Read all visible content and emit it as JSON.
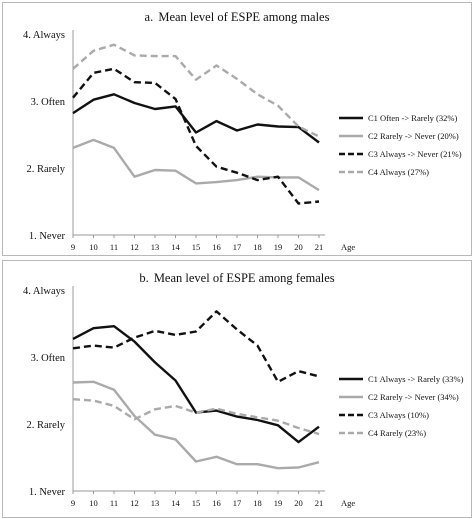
{
  "chart_data": [
    {
      "type": "line",
      "title_prefix": "a.",
      "title": "Mean level of ESPE among males",
      "x": [
        9,
        10,
        11,
        12,
        13,
        14,
        15,
        16,
        17,
        18,
        19,
        20,
        21
      ],
      "xlabel": "Age",
      "ylim": [
        1,
        4
      ],
      "yticks": [
        {
          "value": 4,
          "label": "4. Always"
        },
        {
          "value": 3,
          "label": "3. Often"
        },
        {
          "value": 2,
          "label": "2. Rarely"
        },
        {
          "value": 1,
          "label": "1. Never"
        }
      ],
      "legend_position": "right",
      "series": [
        {
          "name": "C1 Often -> Rarely (32%)",
          "color": "#111111",
          "dash": "solid",
          "values": [
            2.82,
            3.02,
            3.1,
            2.97,
            2.88,
            2.92,
            2.53,
            2.7,
            2.56,
            2.65,
            2.62,
            2.61,
            2.38
          ]
        },
        {
          "name": "C2 Rarely -> Never (20%)",
          "color": "#aaaaaa",
          "dash": "solid",
          "values": [
            2.3,
            2.42,
            2.3,
            1.87,
            1.97,
            1.96,
            1.77,
            1.79,
            1.82,
            1.87,
            1.86,
            1.86,
            1.67
          ]
        },
        {
          "name": "C3 Always -> Never (21%)",
          "color": "#111111",
          "dash": "dashed",
          "values": [
            3.05,
            3.42,
            3.48,
            3.28,
            3.27,
            3.03,
            2.33,
            2.02,
            1.93,
            1.82,
            1.87,
            1.47,
            1.5
          ]
        },
        {
          "name": "C4 Always (27%)",
          "color": "#aaaaaa",
          "dash": "dashed",
          "values": [
            3.48,
            3.75,
            3.84,
            3.68,
            3.67,
            3.67,
            3.32,
            3.53,
            3.33,
            3.1,
            2.93,
            2.62,
            2.47
          ]
        }
      ]
    },
    {
      "type": "line",
      "title_prefix": "b.",
      "title": "Mean level of ESPE among females",
      "x": [
        9,
        10,
        11,
        12,
        13,
        14,
        15,
        16,
        17,
        18,
        19,
        20,
        21
      ],
      "xlabel": "Age",
      "ylim": [
        1,
        4
      ],
      "yticks": [
        {
          "value": 4,
          "label": "4. Always"
        },
        {
          "value": 3,
          "label": "3. Often"
        },
        {
          "value": 2,
          "label": "2. Rarely"
        },
        {
          "value": 1,
          "label": "1. Never"
        }
      ],
      "legend_position": "right",
      "series": [
        {
          "name": "C1 Always -> Rarely (33%)",
          "color": "#111111",
          "dash": "solid",
          "values": [
            3.27,
            3.43,
            3.46,
            3.23,
            2.92,
            2.65,
            2.17,
            2.2,
            2.11,
            2.06,
            1.98,
            1.73,
            1.96
          ]
        },
        {
          "name": "C2 Rarely -> Never (34%)",
          "color": "#aaaaaa",
          "dash": "solid",
          "values": [
            2.62,
            2.63,
            2.51,
            2.12,
            1.84,
            1.77,
            1.44,
            1.51,
            1.4,
            1.4,
            1.34,
            1.35,
            1.43
          ]
        },
        {
          "name": "C3 Always (10%)",
          "color": "#111111",
          "dash": "dashed",
          "values": [
            3.13,
            3.17,
            3.14,
            3.29,
            3.39,
            3.33,
            3.38,
            3.68,
            3.41,
            3.17,
            2.63,
            2.79,
            2.71
          ]
        },
        {
          "name": "C4 Rarely (23%)",
          "color": "#aaaaaa",
          "dash": "dashed",
          "values": [
            2.37,
            2.35,
            2.27,
            2.07,
            2.22,
            2.27,
            2.17,
            2.23,
            2.15,
            2.1,
            2.05,
            1.94,
            1.85
          ]
        }
      ]
    }
  ]
}
